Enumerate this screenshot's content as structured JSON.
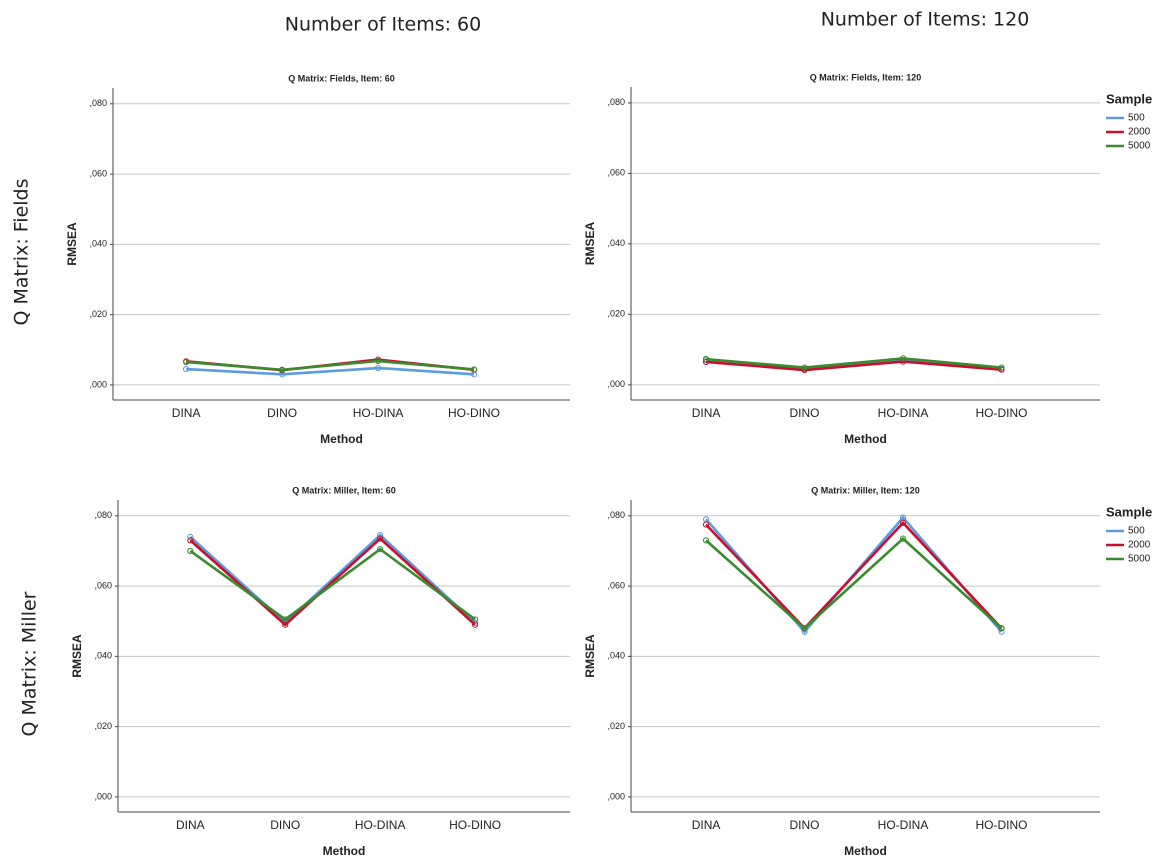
{
  "column_titles": [
    "Number of Items: 60",
    "Number of Items: 120"
  ],
  "row_titles": [
    "Q Matrix: Fields",
    "Q Matrix: Miller"
  ],
  "chart_data": [
    {
      "type": "line",
      "title": "Q Matrix: Fields, Item: 60",
      "x_label": "Method",
      "y_label": "RMSEA",
      "categories": [
        "DINA",
        "DINO",
        "HO-DINA",
        "HO-DINO"
      ],
      "series": [
        {
          "name": "500",
          "color": "#5b9bdf",
          "values": [
            0.0045,
            0.003,
            0.0048,
            0.003
          ]
        },
        {
          "name": "2000",
          "color": "#c8102e",
          "values": [
            0.0067,
            0.0042,
            0.0072,
            0.0043
          ]
        },
        {
          "name": "5000",
          "color": "#3a8a2e",
          "values": [
            0.0065,
            0.0043,
            0.0068,
            0.0044
          ]
        }
      ],
      "ylim": [
        -0.0043,
        0.0845
      ],
      "yticks": [
        {
          "value": 0,
          "label": ",000"
        },
        {
          "value": 0.02,
          "label": ",020"
        },
        {
          "value": 0.04,
          "label": ",040"
        },
        {
          "value": 0.06,
          "label": ",060"
        },
        {
          "value": 0.08,
          "label": ",080"
        }
      ],
      "grid": true,
      "legend": false
    },
    {
      "type": "line",
      "title": "Q Matrix: Fields, Item: 120",
      "x_label": "Method",
      "y_label": "RMSEA",
      "categories": [
        "DINA",
        "DINO",
        "HO-DINA",
        "HO-DINO"
      ],
      "series": [
        {
          "name": "500",
          "color": "#5b9bdf",
          "values": [
            0.007,
            0.0045,
            0.007,
            0.0045
          ]
        },
        {
          "name": "2000",
          "color": "#c8102e",
          "values": [
            0.0065,
            0.0042,
            0.0066,
            0.0043
          ]
        },
        {
          "name": "5000",
          "color": "#3a8a2e",
          "values": [
            0.0073,
            0.0049,
            0.0075,
            0.0049
          ]
        }
      ],
      "ylim": [
        -0.0043,
        0.0845
      ],
      "yticks": [
        {
          "value": 0,
          "label": ",000"
        },
        {
          "value": 0.02,
          "label": ",020"
        },
        {
          "value": 0.04,
          "label": ",040"
        },
        {
          "value": 0.06,
          "label": ",060"
        },
        {
          "value": 0.08,
          "label": ",080"
        }
      ],
      "grid": true,
      "legend": true,
      "legend_title": "Sample",
      "legend_position": "right"
    },
    {
      "type": "line",
      "title": "Q Matrix: Miller, Item: 60",
      "x_label": "Method",
      "y_label": "RMSEA",
      "categories": [
        "DINA",
        "DINO",
        "HO-DINA",
        "HO-DINO"
      ],
      "series": [
        {
          "name": "500",
          "color": "#5b9bdf",
          "values": [
            0.074,
            0.0495,
            0.0745,
            0.0495
          ]
        },
        {
          "name": "2000",
          "color": "#c8102e",
          "values": [
            0.073,
            0.049,
            0.0735,
            0.049
          ]
        },
        {
          "name": "5000",
          "color": "#3a8a2e",
          "values": [
            0.07,
            0.0505,
            0.0705,
            0.0505
          ]
        }
      ],
      "ylim": [
        -0.0043,
        0.0845
      ],
      "yticks": [
        {
          "value": 0,
          "label": ",000"
        },
        {
          "value": 0.02,
          "label": ",020"
        },
        {
          "value": 0.04,
          "label": ",040"
        },
        {
          "value": 0.06,
          "label": ",060"
        },
        {
          "value": 0.08,
          "label": ",080"
        }
      ],
      "grid": true,
      "legend": false
    },
    {
      "type": "line",
      "title": "Q Matrix: Miller, Item: 120",
      "x_label": "Method",
      "y_label": "RMSEA",
      "categories": [
        "DINA",
        "DINO",
        "HO-DINA",
        "HO-DINO"
      ],
      "series": [
        {
          "name": "500",
          "color": "#5b9bdf",
          "values": [
            0.079,
            0.047,
            0.0795,
            0.047
          ]
        },
        {
          "name": "2000",
          "color": "#c8102e",
          "values": [
            0.0775,
            0.048,
            0.078,
            0.048
          ]
        },
        {
          "name": "5000",
          "color": "#3a8a2e",
          "values": [
            0.073,
            0.048,
            0.0735,
            0.048
          ]
        }
      ],
      "ylim": [
        -0.0043,
        0.0845
      ],
      "yticks": [
        {
          "value": 0,
          "label": ",000"
        },
        {
          "value": 0.02,
          "label": ",020"
        },
        {
          "value": 0.04,
          "label": ",040"
        },
        {
          "value": 0.06,
          "label": ",060"
        },
        {
          "value": 0.08,
          "label": ",080"
        }
      ],
      "grid": true,
      "legend": true,
      "legend_title": "Sample",
      "legend_position": "right"
    }
  ]
}
